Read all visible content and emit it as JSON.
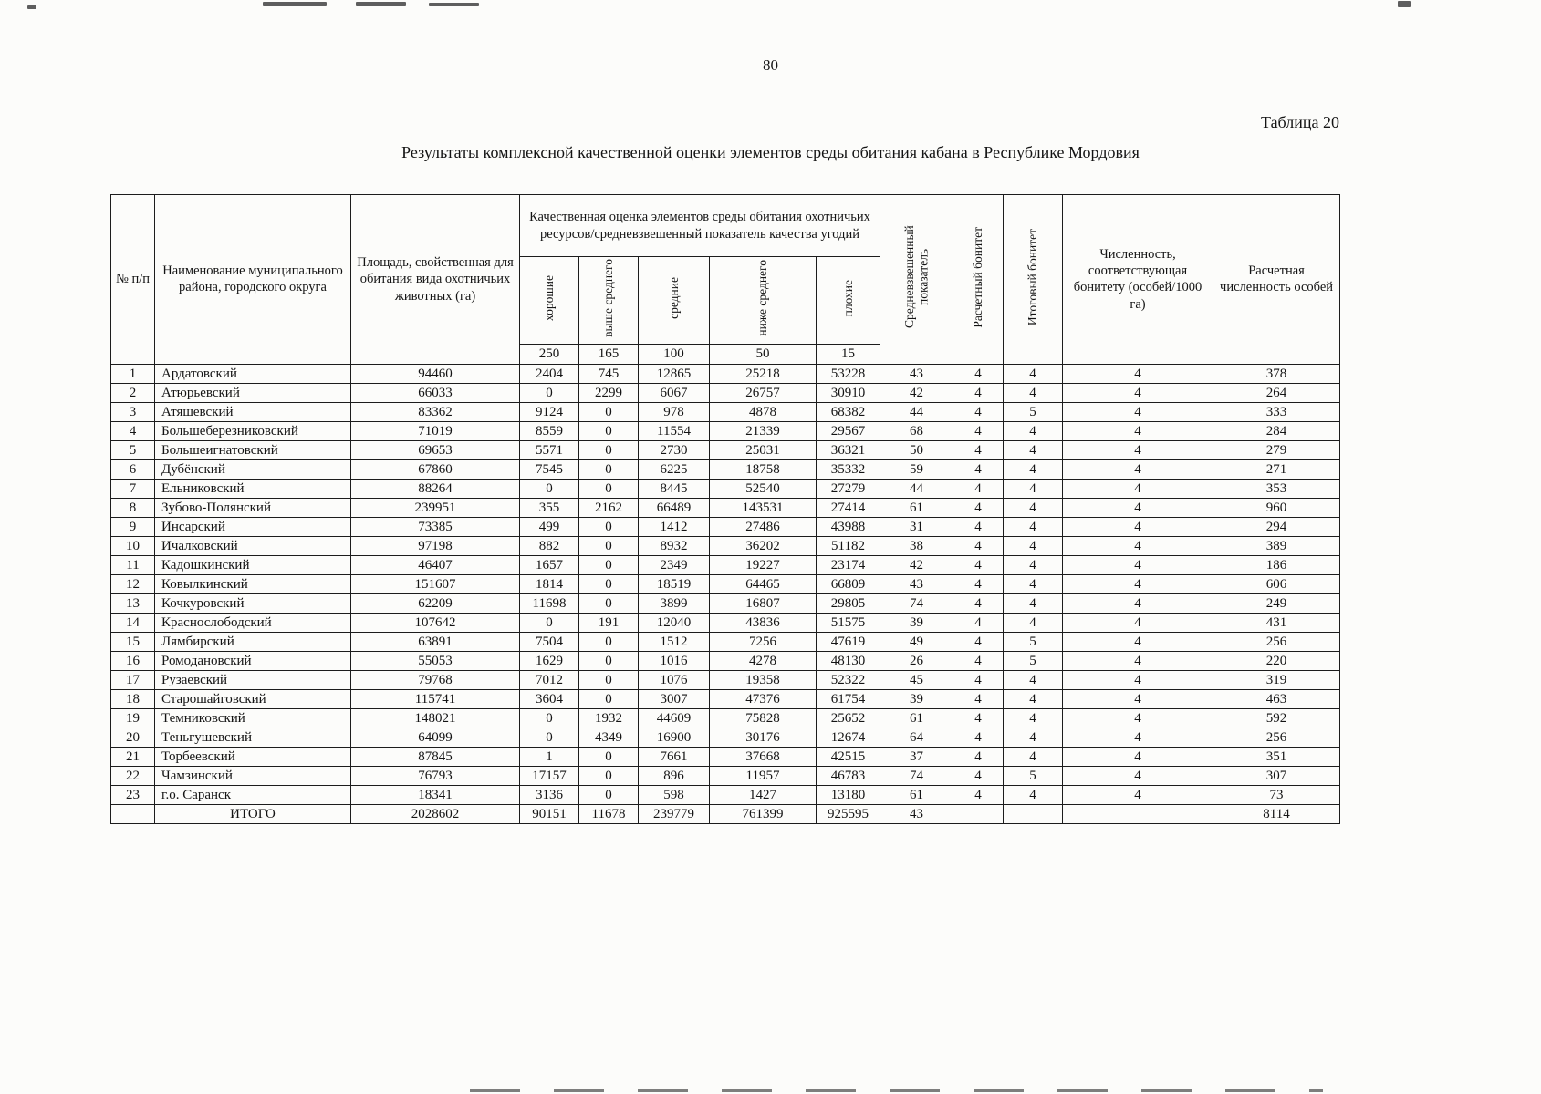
{
  "page": {
    "number": "80",
    "table_caption": "Таблица 20",
    "title": "Результаты комплексной качественной оценки элементов среды обитания кабана в Республике Мордовия"
  },
  "table": {
    "headers": {
      "num": "№ п/п",
      "name": "Наименование муниципального района, городского округа",
      "area": "Площадь, свойственная для обитания вида охотничьих животных (га)",
      "quality_group": "Качественная оценка элементов среды обитания охотничьих ресурсов/средневзвешенный показатель качества угодий",
      "quality_cols": [
        "хорошие",
        "выше среднего",
        "средние",
        "ниже среднего",
        "плохие"
      ],
      "quality_scale": [
        "250",
        "165",
        "100",
        "50",
        "15"
      ],
      "weighted": "Средневзвешенный показатель",
      "calc_bonitet": "Расчетный бонитет",
      "final_bonitet": "Итоговый бонитет",
      "density": "Численность, соответствующая бонитету (особей/1000 га)",
      "calc_count": "Расчетная численность особей"
    },
    "rows": [
      [
        "1",
        "Ардатовский",
        "94460",
        "2404",
        "745",
        "12865",
        "25218",
        "53228",
        "43",
        "4",
        "4",
        "4",
        "378"
      ],
      [
        "2",
        "Атюрьевский",
        "66033",
        "0",
        "2299",
        "6067",
        "26757",
        "30910",
        "42",
        "4",
        "4",
        "4",
        "264"
      ],
      [
        "3",
        "Атяшевский",
        "83362",
        "9124",
        "0",
        "978",
        "4878",
        "68382",
        "44",
        "4",
        "5",
        "4",
        "333"
      ],
      [
        "4",
        "Большеберезниковский",
        "71019",
        "8559",
        "0",
        "11554",
        "21339",
        "29567",
        "68",
        "4",
        "4",
        "4",
        "284"
      ],
      [
        "5",
        "Большеигнатовский",
        "69653",
        "5571",
        "0",
        "2730",
        "25031",
        "36321",
        "50",
        "4",
        "4",
        "4",
        "279"
      ],
      [
        "6",
        "Дубёнский",
        "67860",
        "7545",
        "0",
        "6225",
        "18758",
        "35332",
        "59",
        "4",
        "4",
        "4",
        "271"
      ],
      [
        "7",
        "Ельниковский",
        "88264",
        "0",
        "0",
        "8445",
        "52540",
        "27279",
        "44",
        "4",
        "4",
        "4",
        "353"
      ],
      [
        "8",
        "Зубово-Полянский",
        "239951",
        "355",
        "2162",
        "66489",
        "143531",
        "27414",
        "61",
        "4",
        "4",
        "4",
        "960"
      ],
      [
        "9",
        "Инсарский",
        "73385",
        "499",
        "0",
        "1412",
        "27486",
        "43988",
        "31",
        "4",
        "4",
        "4",
        "294"
      ],
      [
        "10",
        "Ичалковский",
        "97198",
        "882",
        "0",
        "8932",
        "36202",
        "51182",
        "38",
        "4",
        "4",
        "4",
        "389"
      ],
      [
        "11",
        "Кадошкинский",
        "46407",
        "1657",
        "0",
        "2349",
        "19227",
        "23174",
        "42",
        "4",
        "4",
        "4",
        "186"
      ],
      [
        "12",
        "Ковылкинский",
        "151607",
        "1814",
        "0",
        "18519",
        "64465",
        "66809",
        "43",
        "4",
        "4",
        "4",
        "606"
      ],
      [
        "13",
        "Кочкуровский",
        "62209",
        "11698",
        "0",
        "3899",
        "16807",
        "29805",
        "74",
        "4",
        "4",
        "4",
        "249"
      ],
      [
        "14",
        "Краснослободский",
        "107642",
        "0",
        "191",
        "12040",
        "43836",
        "51575",
        "39",
        "4",
        "4",
        "4",
        "431"
      ],
      [
        "15",
        "Лямбирский",
        "63891",
        "7504",
        "0",
        "1512",
        "7256",
        "47619",
        "49",
        "4",
        "5",
        "4",
        "256"
      ],
      [
        "16",
        "Ромодановский",
        "55053",
        "1629",
        "0",
        "1016",
        "4278",
        "48130",
        "26",
        "4",
        "5",
        "4",
        "220"
      ],
      [
        "17",
        "Рузаевский",
        "79768",
        "7012",
        "0",
        "1076",
        "19358",
        "52322",
        "45",
        "4",
        "4",
        "4",
        "319"
      ],
      [
        "18",
        "Старошайговский",
        "115741",
        "3604",
        "0",
        "3007",
        "47376",
        "61754",
        "39",
        "4",
        "4",
        "4",
        "463"
      ],
      [
        "19",
        "Темниковский",
        "148021",
        "0",
        "1932",
        "44609",
        "75828",
        "25652",
        "61",
        "4",
        "4",
        "4",
        "592"
      ],
      [
        "20",
        "Теньгушевский",
        "64099",
        "0",
        "4349",
        "16900",
        "30176",
        "12674",
        "64",
        "4",
        "4",
        "4",
        "256"
      ],
      [
        "21",
        "Торбеевский",
        "87845",
        "1",
        "0",
        "7661",
        "37668",
        "42515",
        "37",
        "4",
        "4",
        "4",
        "351"
      ],
      [
        "22",
        "Чамзинский",
        "76793",
        "17157",
        "0",
        "896",
        "11957",
        "46783",
        "74",
        "4",
        "5",
        "4",
        "307"
      ],
      [
        "23",
        "г.о. Саранск",
        "18341",
        "3136",
        "0",
        "598",
        "1427",
        "13180",
        "61",
        "4",
        "4",
        "4",
        "73"
      ]
    ],
    "total": [
      "",
      "ИТОГО",
      "2028602",
      "90151",
      "11678",
      "239779",
      "761399",
      "925595",
      "43",
      "",
      "",
      "",
      "8114"
    ]
  }
}
